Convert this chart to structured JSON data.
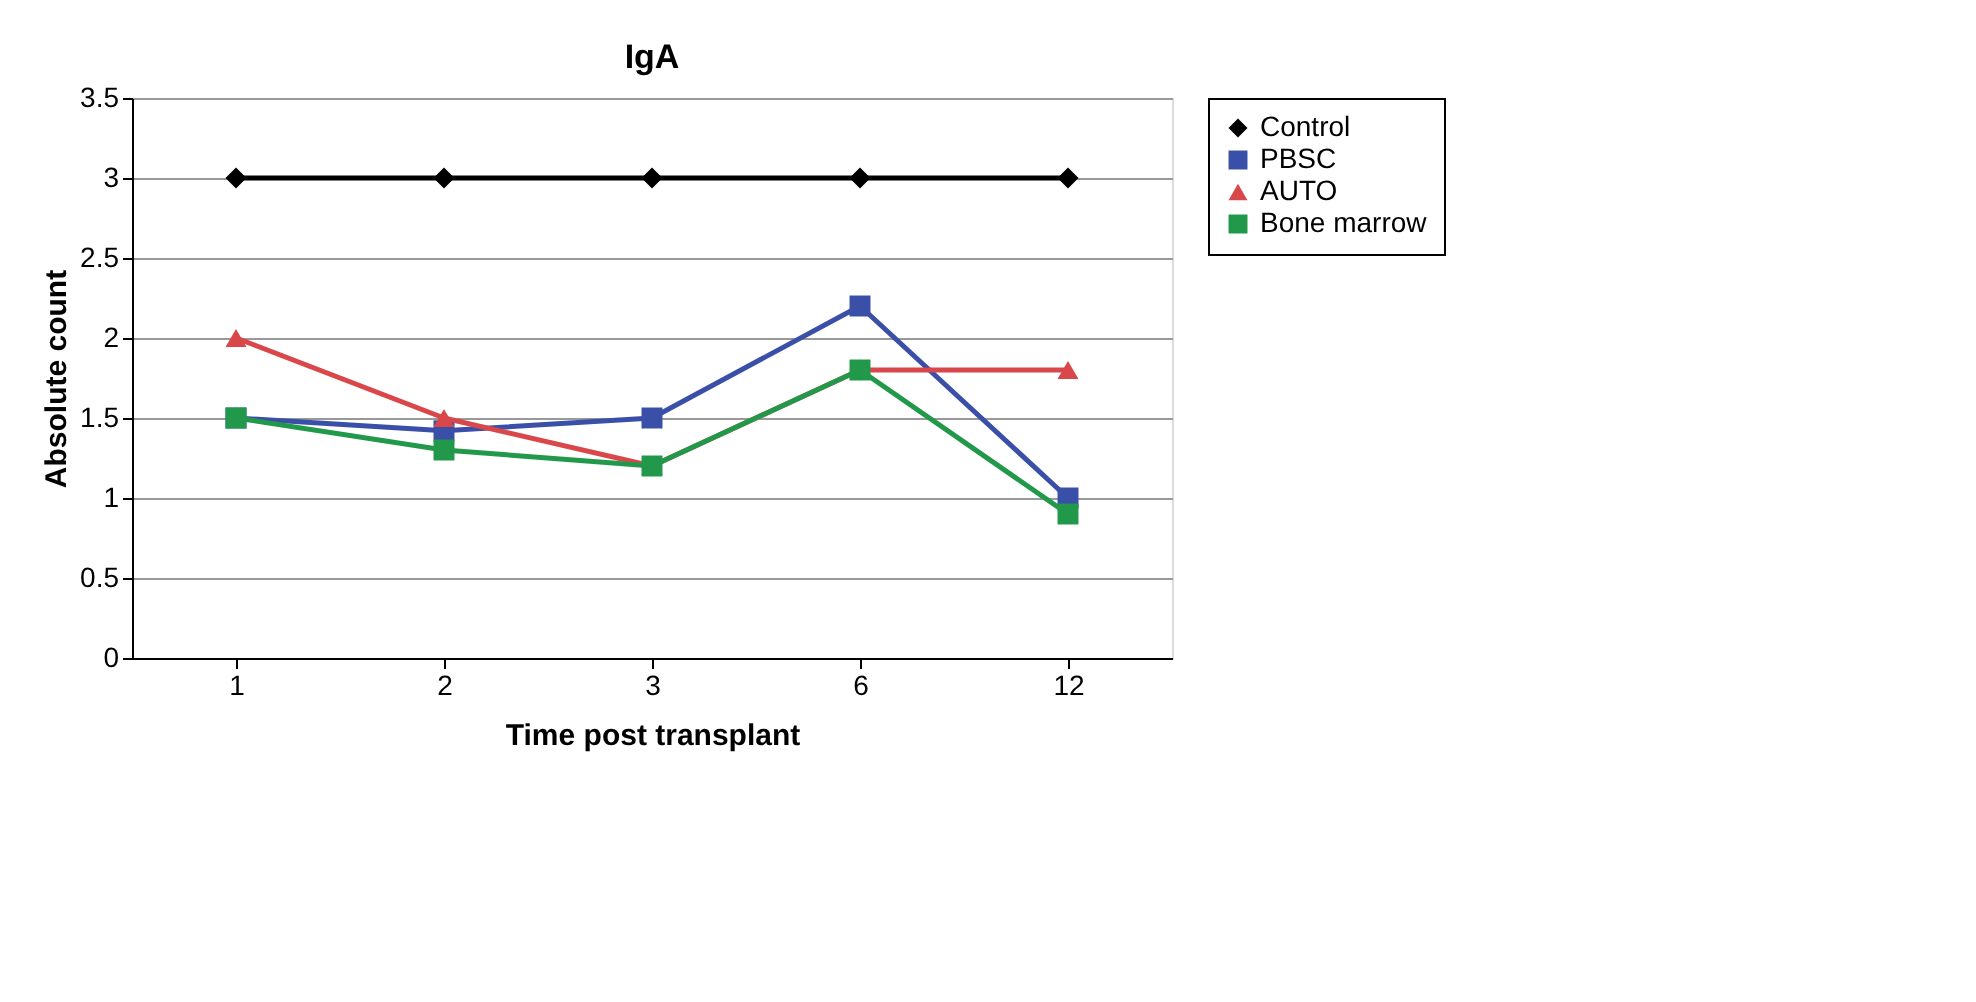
{
  "chart_data": {
    "type": "line",
    "title": "IgA",
    "xlabel": "Time post transplant",
    "ylabel": "Absolute count",
    "categories": [
      "1",
      "2",
      "3",
      "6",
      "12"
    ],
    "series": [
      {
        "name": "Control",
        "color": "#000000",
        "marker": "diamond",
        "values": [
          3,
          3,
          3,
          3,
          3
        ]
      },
      {
        "name": "PBSC",
        "color": "#3a4fa8",
        "marker": "square",
        "values": [
          1.5,
          1.42,
          1.5,
          2.2,
          1.0
        ]
      },
      {
        "name": "AUTO",
        "color": "#d9474a",
        "marker": "triangle",
        "values": [
          2.0,
          1.5,
          1.2,
          1.8,
          1.8
        ]
      },
      {
        "name": "Bone marrow",
        "color": "#22994a",
        "marker": "square",
        "values": [
          1.5,
          1.3,
          1.2,
          1.8,
          0.9
        ]
      }
    ],
    "ylim": [
      0,
      3.5
    ],
    "yticks": [
      0,
      0.5,
      1,
      1.5,
      2,
      2.5,
      3,
      3.5
    ],
    "grid": "y",
    "legend": "right",
    "line_style": "solid"
  }
}
